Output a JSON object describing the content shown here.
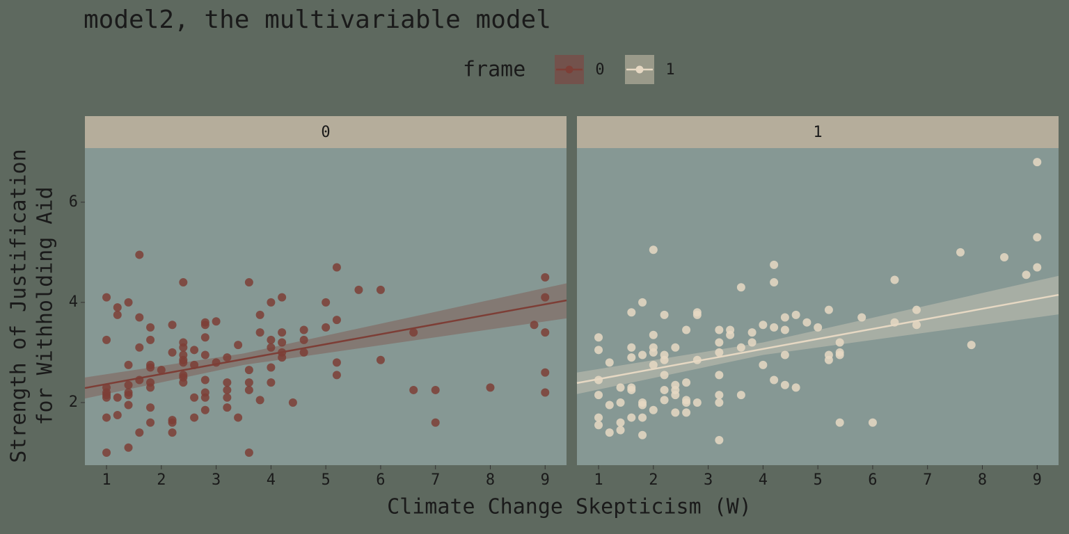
{
  "chart_data": {
    "type": "scatter",
    "title": "model2, the multivariable model",
    "legend_title": "frame",
    "x_label": "Climate Change Skepticism (W)",
    "y_label": [
      "Strength of Justification",
      "for Withholding Aid"
    ],
    "xlim": [
      0.606,
      9.39
    ],
    "ylim": [
      0.75,
      7.08
    ],
    "xticks": [
      1,
      2,
      3,
      4,
      5,
      6,
      7,
      8,
      9
    ],
    "yticks": [
      2,
      4,
      6
    ],
    "series": [
      {
        "name": "0",
        "color": "#7d3e36",
        "x": [
          1,
          1,
          1,
          1,
          1,
          1,
          1,
          1,
          1.2,
          1.2,
          1.2,
          1.2,
          1.4,
          1.4,
          1.4,
          1.4,
          1.4,
          1.4,
          1.4,
          1.6,
          1.6,
          1.6,
          1.6,
          1.6,
          1.8,
          1.8,
          1.8,
          1.8,
          1.8,
          1.8,
          1.8,
          1.8,
          2,
          2.2,
          2.2,
          2.2,
          2.2,
          2.2,
          2.4,
          2.4,
          2.4,
          2.4,
          2.4,
          2.4,
          2.4,
          2.4,
          2.4,
          2.6,
          2.6,
          2.6,
          2.6,
          2.8,
          2.8,
          2.8,
          2.8,
          2.8,
          2.8,
          2.8,
          2.8,
          3,
          3,
          3.2,
          3.2,
          3.2,
          3.2,
          3.2,
          3.4,
          3.4,
          3.6,
          3.6,
          3.6,
          3.6,
          3.6,
          3.8,
          3.8,
          3.8,
          4,
          4,
          4,
          4,
          4,
          4.2,
          4.2,
          4.2,
          4.2,
          4.2,
          4.4,
          4.6,
          4.6,
          4.6,
          5,
          5,
          5.2,
          5.2,
          5.2,
          5.2,
          5.6,
          6,
          6,
          6.6,
          6.6,
          7,
          7,
          8,
          8.8,
          9,
          9,
          9,
          9,
          9
        ],
        "y": [
          4.1,
          3.25,
          2.3,
          2.2,
          2.15,
          2.1,
          1.7,
          1.0,
          3.75,
          3.9,
          2.1,
          1.75,
          4.0,
          2.75,
          2.35,
          2.2,
          2.15,
          1.95,
          1.1,
          4.95,
          3.7,
          3.1,
          2.45,
          1.4,
          3.5,
          3.25,
          2.75,
          2.7,
          2.4,
          2.3,
          1.9,
          1.6,
          2.65,
          3.55,
          3.0,
          1.65,
          1.6,
          1.4,
          4.4,
          3.2,
          3.1,
          2.95,
          2.85,
          2.8,
          2.55,
          2.5,
          2.4,
          3.05,
          2.75,
          2.1,
          1.7,
          3.6,
          3.55,
          3.3,
          2.95,
          2.45,
          2.2,
          2.1,
          1.85,
          3.62,
          2.8,
          2.9,
          2.4,
          2.25,
          2.1,
          1.9,
          3.15,
          1.7,
          4.4,
          2.65,
          2.4,
          2.25,
          1.0,
          3.75,
          3.4,
          2.05,
          4.0,
          3.25,
          3.1,
          2.7,
          2.4,
          4.1,
          3.4,
          3.2,
          3.0,
          2.9,
          2.0,
          3.45,
          3.25,
          3.0,
          4.0,
          3.5,
          4.7,
          3.65,
          2.8,
          2.55,
          4.25,
          4.25,
          2.85,
          3.4,
          2.25,
          2.25,
          1.6,
          2.3,
          3.55,
          4.5,
          4.1,
          3.4,
          2.6,
          2.2
        ],
        "fit": {
          "x": [
            0.606,
            9.39
          ],
          "y": [
            2.29,
            4.04
          ]
        },
        "band": {
          "x": [
            0.606,
            3.5,
            9.39
          ],
          "lower": [
            2.08,
            2.75,
            3.68
          ],
          "upper": [
            2.5,
            2.98,
            4.38
          ]
        }
      },
      {
        "name": "1",
        "color": "#e6d8c3",
        "x": [
          1,
          1,
          1,
          1,
          1,
          1,
          1.2,
          1.2,
          1.2,
          1.4,
          1.4,
          1.4,
          1.4,
          1.6,
          1.6,
          1.6,
          1.6,
          1.6,
          1.6,
          1.8,
          1.8,
          1.8,
          1.8,
          1.8,
          1.8,
          2,
          2,
          2,
          2,
          2,
          2,
          2.2,
          2.2,
          2.2,
          2.2,
          2.2,
          2.2,
          2.4,
          2.4,
          2.4,
          2.4,
          2.4,
          2.6,
          2.6,
          2.6,
          2.6,
          2.6,
          2.8,
          2.8,
          2.8,
          2.8,
          3.2,
          3.2,
          3.2,
          3.2,
          3.2,
          3.2,
          3.2,
          3.4,
          3.4,
          3.6,
          3.6,
          3.6,
          3.8,
          3.8,
          4,
          4,
          4.2,
          4.2,
          4.2,
          4.2,
          4.4,
          4.4,
          4.4,
          4.4,
          4.6,
          4.6,
          4.8,
          5,
          5.2,
          5.2,
          5.2,
          5.4,
          5.4,
          5.4,
          5.4,
          5.8,
          6,
          6.4,
          6.4,
          6.8,
          6.8,
          7.6,
          7.8,
          8.4,
          8.8,
          9,
          9,
          9
        ],
        "y": [
          3.3,
          3.05,
          2.45,
          2.15,
          1.7,
          1.55,
          2.8,
          1.95,
          1.4,
          2.3,
          2.0,
          1.6,
          1.45,
          3.8,
          3.1,
          2.9,
          2.3,
          2.25,
          1.7,
          4.0,
          2.95,
          2.0,
          1.95,
          1.7,
          1.35,
          5.05,
          3.35,
          3.1,
          3.0,
          2.75,
          1.85,
          3.75,
          2.95,
          2.85,
          2.55,
          2.25,
          2.05,
          3.1,
          2.35,
          2.25,
          2.15,
          1.8,
          3.45,
          2.4,
          2.05,
          2.0,
          1.8,
          3.8,
          3.75,
          2.85,
          2.0,
          3.45,
          3.2,
          3.0,
          2.55,
          2.15,
          2.0,
          1.25,
          3.45,
          3.35,
          4.3,
          3.1,
          2.15,
          3.4,
          3.2,
          3.55,
          2.75,
          4.75,
          4.4,
          3.5,
          2.45,
          3.7,
          3.45,
          2.95,
          2.35,
          3.75,
          2.3,
          3.6,
          3.5,
          3.85,
          2.95,
          2.85,
          3.2,
          3.0,
          2.95,
          1.6,
          3.7,
          1.6,
          4.45,
          3.6,
          3.85,
          3.55,
          5.0,
          3.15,
          4.9,
          4.55,
          6.8,
          5.3,
          4.7
        ],
        "fit": {
          "x": [
            0.606,
            9.39
          ],
          "y": [
            2.39,
            4.15
          ]
        },
        "band": {
          "x": [
            0.606,
            4,
            9.39
          ],
          "lower": [
            2.17,
            2.95,
            3.76
          ],
          "upper": [
            2.6,
            3.2,
            4.53
          ]
        }
      }
    ]
  }
}
